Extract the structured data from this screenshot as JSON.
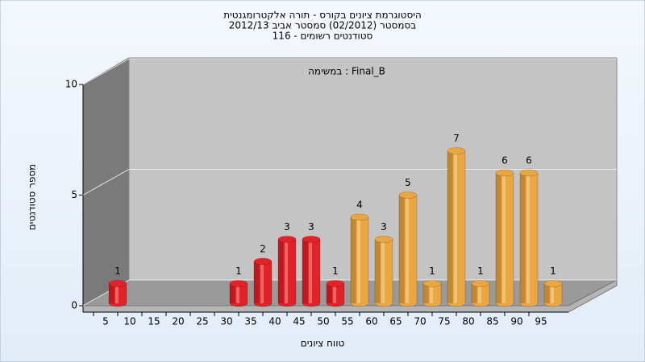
{
  "chart_data": {
    "type": "bar",
    "title": [
      "היסטוגרמת ציונים בקורס - תורה אלקטרומגנטית",
      "בסמסטר  (02/2012)  סמסטר אביב 2012/13",
      "סטודנטים רשומים - 116"
    ],
    "annotation": "במשימה : Final_B",
    "x_label": "טווח ציונים",
    "y_label": "מספר סטודנטים",
    "categories": [
      "5",
      "10",
      "15",
      "20",
      "25",
      "30",
      "35",
      "40",
      "45",
      "50",
      "55",
      "60",
      "65",
      "70",
      "75",
      "80",
      "85",
      "90",
      "95"
    ],
    "values": [
      1,
      0,
      0,
      0,
      0,
      1,
      2,
      3,
      3,
      1,
      4,
      3,
      5,
      1,
      7,
      1,
      6,
      6,
      1
    ],
    "colors": [
      "#e32228",
      "#e32228",
      "#e32228",
      "#e32228",
      "#e32228",
      "#e32228",
      "#e32228",
      "#e32228",
      "#e32228",
      "#e32228",
      "#eaa640",
      "#eaa640",
      "#eaa640",
      "#eaa640",
      "#eaa640",
      "#eaa640",
      "#eaa640",
      "#eaa640",
      "#eaa640"
    ],
    "ylim": [
      0,
      10
    ],
    "yticks": [
      0,
      5,
      10
    ],
    "grid": true
  }
}
